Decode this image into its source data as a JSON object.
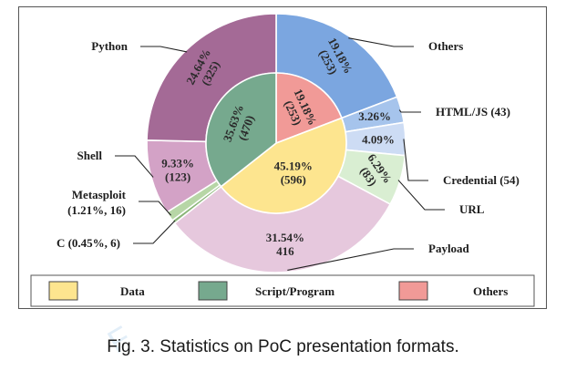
{
  "caption": "Fig. 3.  Statistics on PoC presentation formats.",
  "watermark": "F",
  "colors": {
    "data": "#fde58f",
    "script": "#76a98e",
    "others_inner": "#f19a97",
    "python": "#a46a96",
    "shell": "#d3a2c6",
    "payload": "#e6c8dd",
    "metasploit": "#b7d6a6",
    "c": "#8ab578",
    "others_outer": "#7ba6e0",
    "html": "#a6c4ec",
    "credential": "#cddcf4",
    "url": "#d9eed2"
  },
  "chart_data": {
    "type": "pie",
    "title": "",
    "inner": [
      {
        "name": "Data",
        "pct": 45.19,
        "count": 596,
        "label": "45.19%\n(596)",
        "color_key": "data"
      },
      {
        "name": "Script/Program",
        "pct": 35.63,
        "count": 470,
        "label": "35.63%\n(470)",
        "color_key": "script"
      },
      {
        "name": "Others",
        "pct": 19.18,
        "count": 253,
        "label": "19.18%\n(253)",
        "color_key": "others_inner"
      }
    ],
    "outer": [
      {
        "name": "Others",
        "pct": 19.18,
        "count": 253,
        "label": "19.18%\n(253)",
        "color_key": "others_outer",
        "parent": "Others"
      },
      {
        "name": "HTML/JS",
        "pct": 3.26,
        "count": 43,
        "label": "3.26%",
        "color_key": "html",
        "parent": "Data"
      },
      {
        "name": "Credential",
        "pct": 4.09,
        "count": 54,
        "label": "4.09%",
        "color_key": "credential",
        "parent": "Data"
      },
      {
        "name": "URL",
        "pct": 6.29,
        "count": 83,
        "label": "6.29%\n(83)",
        "color_key": "url",
        "parent": "Data"
      },
      {
        "name": "Payload",
        "pct": 31.54,
        "count": 416,
        "label": "31.54%\n416",
        "color_key": "payload",
        "parent": "Data"
      },
      {
        "name": "C",
        "pct": 0.45,
        "count": 6,
        "label": "",
        "color_key": "c",
        "parent": "Script/Program"
      },
      {
        "name": "Metasploit",
        "pct": 1.21,
        "count": 16,
        "label": "",
        "color_key": "metasploit",
        "parent": "Script/Program"
      },
      {
        "name": "Shell",
        "pct": 9.33,
        "count": 123,
        "label": "9.33%\n(123)",
        "color_key": "shell",
        "parent": "Script/Program"
      },
      {
        "name": "Python",
        "pct": 24.64,
        "count": 325,
        "label": "24.64%\n(325)",
        "color_key": "python",
        "parent": "Script/Program"
      }
    ],
    "callouts": [
      {
        "text": "Python",
        "for": "Python"
      },
      {
        "text": "Others",
        "for": "Others"
      },
      {
        "text": "HTML/JS (43)",
        "for": "HTML/JS"
      },
      {
        "text": "Shell",
        "for": "Shell"
      },
      {
        "text": "Credential (54)",
        "for": "Credential"
      },
      {
        "text": "Metasploit\n(1.21%, 16)",
        "for": "Metasploit"
      },
      {
        "text": "URL",
        "for": "URL"
      },
      {
        "text": "C (0.45%, 6)",
        "for": "C"
      },
      {
        "text": "Payload",
        "for": "Payload"
      }
    ],
    "legend": [
      {
        "label": "Data",
        "color_key": "data"
      },
      {
        "label": "Script/Program",
        "color_key": "script"
      },
      {
        "label": "Others",
        "color_key": "others_inner"
      }
    ]
  }
}
